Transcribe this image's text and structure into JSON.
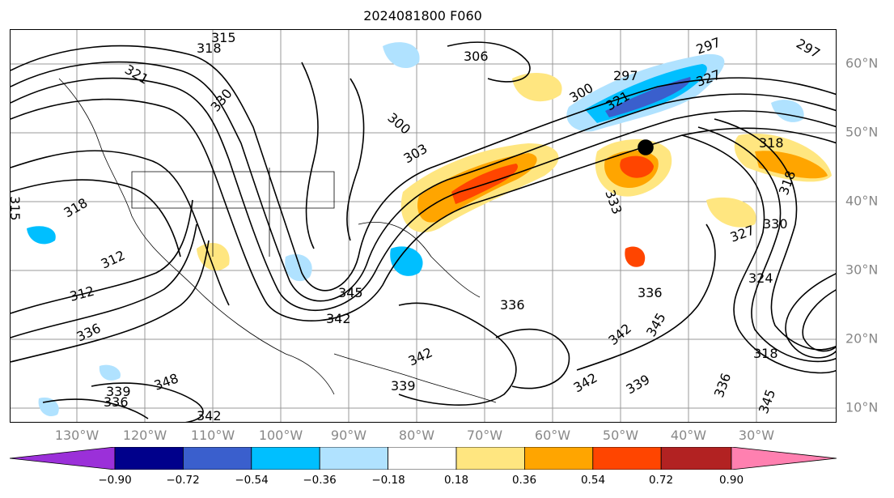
{
  "title": "2024081800 F060",
  "lon_labels": [
    "130°W",
    "120°W",
    "110°W",
    "100°W",
    "90°W",
    "80°W",
    "70°W",
    "60°W",
    "50°W",
    "40°W",
    "30°W"
  ],
  "lat_labels": [
    "60°N",
    "50°N",
    "40°N",
    "30°N",
    "20°N",
    "10°N"
  ],
  "colorbar": {
    "ticks": [
      "−0.90",
      "−0.72",
      "−0.54",
      "−0.36",
      "−0.18",
      "0.18",
      "0.36",
      "0.54",
      "0.72",
      "0.90"
    ],
    "colors": [
      "#9b30d9",
      "#00008b",
      "#3a5fcd",
      "#00bfff",
      "#b0e2ff",
      "#ffffff",
      "#ffe680",
      "#ffa500",
      "#ff4500",
      "#b22222",
      "#ff80b0"
    ]
  },
  "contour_labels": [
    {
      "text": "315"
    },
    {
      "text": "318"
    },
    {
      "text": "321"
    },
    {
      "text": "330"
    },
    {
      "text": "306"
    },
    {
      "text": "297"
    },
    {
      "text": "297"
    },
    {
      "text": "297"
    },
    {
      "text": "300"
    },
    {
      "text": "300"
    },
    {
      "text": "303"
    },
    {
      "text": "321"
    },
    {
      "text": "327"
    },
    {
      "text": "318"
    },
    {
      "text": "318"
    },
    {
      "text": "312"
    },
    {
      "text": "312"
    },
    {
      "text": "336"
    },
    {
      "text": "348"
    },
    {
      "text": "342"
    },
    {
      "text": "339"
    },
    {
      "text": "336"
    },
    {
      "text": "345"
    },
    {
      "text": "342"
    },
    {
      "text": "336"
    },
    {
      "text": "342"
    },
    {
      "text": "339"
    },
    {
      "text": "342"
    },
    {
      "text": "339"
    },
    {
      "text": "345"
    },
    {
      "text": "336"
    },
    {
      "text": "342"
    },
    {
      "text": "345"
    },
    {
      "text": "318"
    },
    {
      "text": "324"
    },
    {
      "text": "327"
    },
    {
      "text": "330"
    },
    {
      "text": "318"
    },
    {
      "text": "333"
    },
    {
      "text": "336"
    },
    {
      "text": "315"
    }
  ]
}
